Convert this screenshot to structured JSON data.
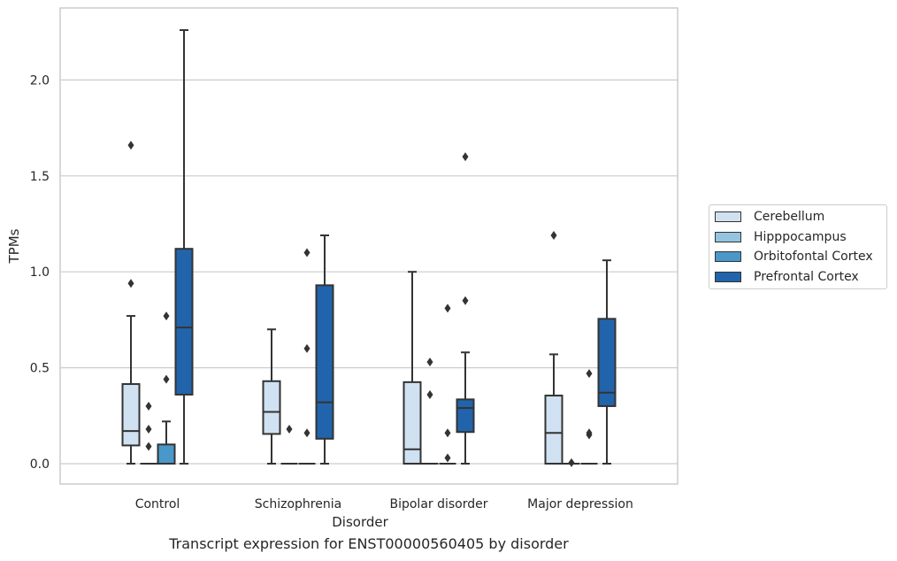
{
  "caption": "Transcript expression for ENST00000560405 by disorder",
  "chart_data": {
    "type": "box",
    "xlabel": "Disorder",
    "ylabel": "TPMs",
    "ylim": [
      -0.11,
      2.36
    ],
    "yticks": [
      "0.0",
      "0.5",
      "1.0",
      "1.5",
      "2.0"
    ],
    "grid": "horizontal",
    "legend_position": "right",
    "categories": [
      "Control",
      "Schizophrenia",
      "Bipolar disorder",
      "Major depression"
    ],
    "series": [
      {
        "name": "Cerebellum",
        "color": "#d0e1f2",
        "boxes": [
          {
            "min": 0.0,
            "q1": 0.095,
            "median": 0.17,
            "q3": 0.415,
            "max": 0.77,
            "outliers": [
              0.94,
              1.66
            ]
          },
          {
            "min": 0.0,
            "q1": 0.155,
            "median": 0.27,
            "q3": 0.43,
            "max": 0.7,
            "outliers": []
          },
          {
            "min": 0.0,
            "q1": 0.0,
            "median": 0.075,
            "q3": 0.425,
            "max": 1.0,
            "outliers": []
          },
          {
            "min": 0.0,
            "q1": 0.0,
            "median": 0.16,
            "q3": 0.355,
            "max": 0.57,
            "outliers": [
              1.19
            ]
          }
        ]
      },
      {
        "name": "Hipppocampus",
        "color": "#94c4df",
        "boxes": [
          {
            "min": 0.0,
            "q1": 0.0,
            "median": 0.0,
            "q3": 0.0,
            "max": 0.0,
            "outliers": [
              0.09,
              0.18,
              0.3
            ]
          },
          {
            "min": 0.0,
            "q1": 0.0,
            "median": 0.0,
            "q3": 0.0,
            "max": 0.0,
            "outliers": [
              0.18
            ]
          },
          {
            "min": 0.0,
            "q1": 0.0,
            "median": 0.0,
            "q3": 0.0,
            "max": 0.0,
            "outliers": [
              0.36,
              0.53
            ]
          },
          {
            "min": 0.0,
            "q1": 0.0,
            "median": 0.0,
            "q3": 0.0,
            "max": 0.0,
            "outliers": [
              0.005
            ]
          }
        ]
      },
      {
        "name": "Orbitofontal Cortex",
        "color": "#4a98c9",
        "boxes": [
          {
            "min": 0.0,
            "q1": 0.0,
            "median": 0.0,
            "q3": 0.1,
            "max": 0.22,
            "outliers": [
              0.44,
              0.77
            ]
          },
          {
            "min": 0.0,
            "q1": 0.0,
            "median": 0.0,
            "q3": 0.0,
            "max": 0.0,
            "outliers": [
              0.16,
              0.6,
              1.1
            ]
          },
          {
            "min": 0.0,
            "q1": 0.0,
            "median": 0.0,
            "q3": 0.0,
            "max": 0.0,
            "outliers": [
              0.03,
              0.16,
              0.81
            ]
          },
          {
            "min": 0.0,
            "q1": 0.0,
            "median": 0.0,
            "q3": 0.0,
            "max": 0.0,
            "outliers": [
              0.15,
              0.16,
              0.47
            ]
          }
        ]
      },
      {
        "name": "Prefrontal Cortex",
        "color": "#2164ab",
        "boxes": [
          {
            "min": 0.0,
            "q1": 0.36,
            "median": 0.71,
            "q3": 1.12,
            "max": 2.26,
            "outliers": []
          },
          {
            "min": 0.0,
            "q1": 0.13,
            "median": 0.32,
            "q3": 0.93,
            "max": 1.19,
            "outliers": []
          },
          {
            "min": 0.0,
            "q1": 0.165,
            "median": 0.29,
            "q3": 0.335,
            "max": 0.58,
            "outliers": [
              0.85,
              1.6
            ]
          },
          {
            "min": 0.0,
            "q1": 0.3,
            "median": 0.37,
            "q3": 0.755,
            "max": 1.06,
            "outliers": []
          }
        ]
      }
    ]
  }
}
